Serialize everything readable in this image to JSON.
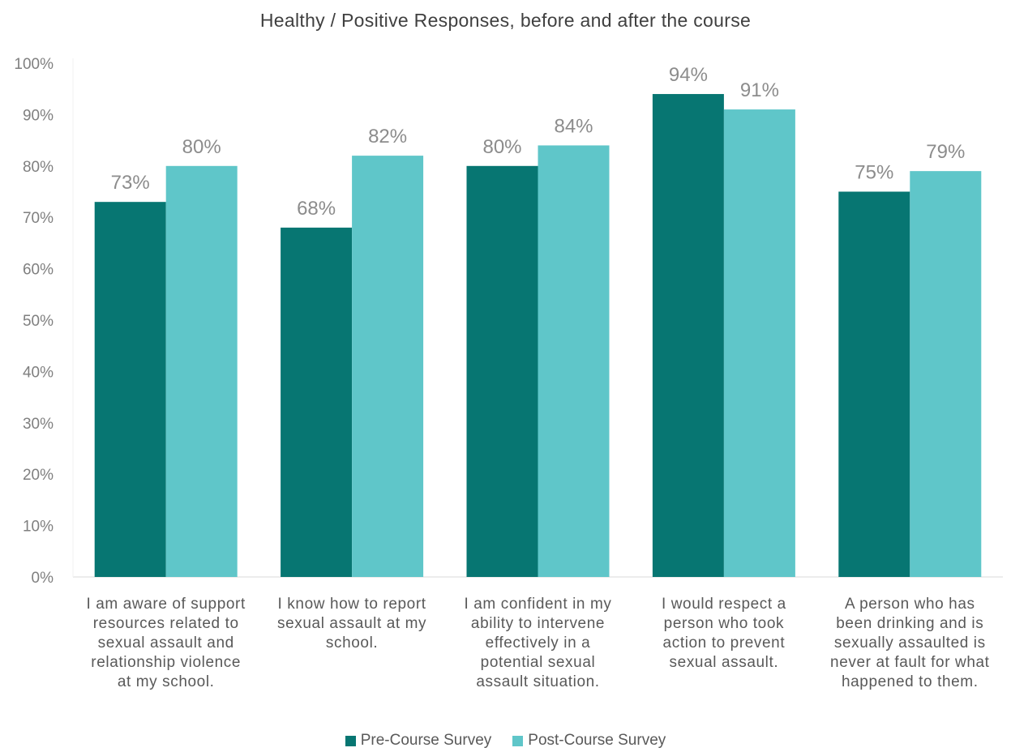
{
  "chart_data": {
    "type": "bar",
    "title": "Healthy / Positive Responses, before and after the course",
    "xlabel": "",
    "ylabel": "",
    "ylim": [
      0,
      100
    ],
    "yticks": [
      "0%",
      "10%",
      "20%",
      "30%",
      "40%",
      "50%",
      "60%",
      "70%",
      "80%",
      "90%",
      "100%"
    ],
    "categories": [
      "I am aware of support resources related to sexual assault and relationship violence at my school.",
      "I know how to report sexual assault at my school.",
      "I am confident in my ability to intervene effectively in a potential sexual assault situation.",
      "I would respect a person who took action to prevent sexual assault.",
      "A person who has been drinking and is sexually assaulted is never at fault for what happened to them."
    ],
    "category_lines": [
      [
        "I am aware of support",
        "resources related to",
        "sexual assault and",
        "relationship violence",
        "at my school."
      ],
      [
        "I know how to report",
        "sexual assault at my",
        "school."
      ],
      [
        "I am confident in my",
        "ability to intervene",
        "effectively in a",
        "potential sexual",
        "assault situation."
      ],
      [
        "I would respect a",
        "person who took",
        "action to prevent",
        "sexual assault."
      ],
      [
        "A person who has",
        "been drinking and is",
        "sexually assaulted is",
        "never at fault for what",
        "happened to them."
      ]
    ],
    "series": [
      {
        "name": "Pre-Course Survey",
        "color": "#077672",
        "values": [
          73,
          68,
          80,
          94,
          75
        ],
        "labels": [
          "73%",
          "68%",
          "80%",
          "94%",
          "75%"
        ]
      },
      {
        "name": "Post-Course Survey",
        "color": "#5fc6c9",
        "values": [
          80,
          82,
          84,
          91,
          79
        ],
        "labels": [
          "80%",
          "82%",
          "84%",
          "91%",
          "79%"
        ]
      }
    ],
    "grid": false,
    "legend_position": "bottom"
  }
}
